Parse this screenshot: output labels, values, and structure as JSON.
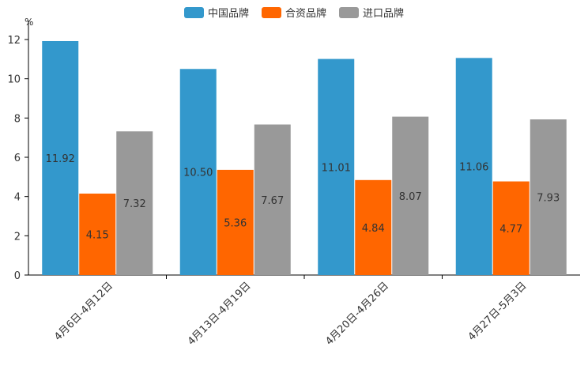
{
  "chart_data": {
    "type": "bar",
    "title": "",
    "xlabel": "",
    "ylabel": "%",
    "ylim": [
      0,
      12
    ],
    "yticks": [
      0,
      2,
      4,
      6,
      8,
      10,
      12
    ],
    "categories": [
      "4月6日-4月12日",
      "4月13日-4月19日",
      "4月20日-4月26日",
      "4月27日-5月3日"
    ],
    "series": [
      {
        "name": "中国品牌",
        "color": "#3398cc",
        "values": [
          11.92,
          10.5,
          11.01,
          11.06
        ]
      },
      {
        "name": "合资品牌",
        "color": "#ff6600",
        "values": [
          4.15,
          5.36,
          4.84,
          4.77
        ]
      },
      {
        "name": "进口品牌",
        "color": "#999999",
        "values": [
          7.32,
          7.67,
          8.07,
          7.93
        ]
      }
    ],
    "legend_position": "top-center",
    "grid": false
  }
}
